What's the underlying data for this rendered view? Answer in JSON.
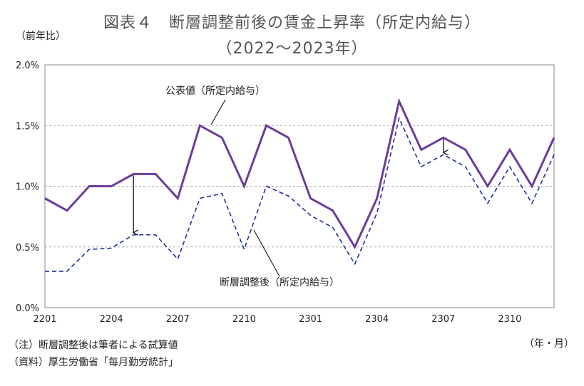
{
  "chart_data": {
    "type": "line",
    "title": "図表４　断層調整前後の賃金上昇率（所定内給与）",
    "subtitle": "（2022～2023年）",
    "ylabel": "（前年比）",
    "xlabel": "（年・月）",
    "ylim": [
      0,
      2.0
    ],
    "yticks": [
      "0.0%",
      "0.5%",
      "1.0%",
      "1.5%",
      "2.0%"
    ],
    "ytick_values": [
      0,
      0.5,
      1.0,
      1.5,
      2.0
    ],
    "x": [
      "2201",
      "2202",
      "2203",
      "2204",
      "2205",
      "2206",
      "2207",
      "2208",
      "2209",
      "2210",
      "2211",
      "2212",
      "2301",
      "2302",
      "2303",
      "2304",
      "2305",
      "2306",
      "2307",
      "2308",
      "2309",
      "2310",
      "2311",
      "2312"
    ],
    "xticks": [
      "2201",
      "2204",
      "2207",
      "2210",
      "2301",
      "2304",
      "2307",
      "2310"
    ],
    "grid": "horizontal dashed",
    "series": [
      {
        "name": "公表値（所定内給与）",
        "style": "solid",
        "color": "#6a3d9a",
        "values": [
          0.9,
          0.8,
          1.0,
          1.0,
          1.1,
          1.1,
          0.9,
          1.5,
          1.4,
          1.0,
          1.5,
          1.4,
          0.9,
          0.8,
          0.5,
          0.9,
          1.7,
          1.3,
          1.4,
          1.3,
          1.0,
          1.3,
          1.0,
          1.4
        ]
      },
      {
        "name": "断層調整後（所定内給与）",
        "style": "dashed",
        "color": "#1f2f9e",
        "values": [
          0.3,
          0.3,
          0.48,
          0.49,
          0.6,
          0.6,
          0.4,
          0.9,
          0.94,
          0.48,
          1.0,
          0.92,
          0.76,
          0.66,
          0.36,
          0.78,
          1.56,
          1.16,
          1.26,
          1.16,
          0.86,
          1.16,
          0.86,
          1.26
        ]
      }
    ],
    "annotations": [
      {
        "text": "公表値（所定内給与）",
        "series": 0
      },
      {
        "text": "断層調整後（所定内給与）",
        "series": 1
      }
    ],
    "arrows": [
      {
        "at": "2205",
        "from_value": 1.1,
        "to_value": 0.6
      },
      {
        "at": "2307",
        "from_value": 1.4,
        "to_value": 1.26
      }
    ]
  },
  "notes": {
    "note1": "（注）断層調整後は筆者による試算値",
    "note2": "（資料）厚生労働省「毎月勤労統計」"
  }
}
